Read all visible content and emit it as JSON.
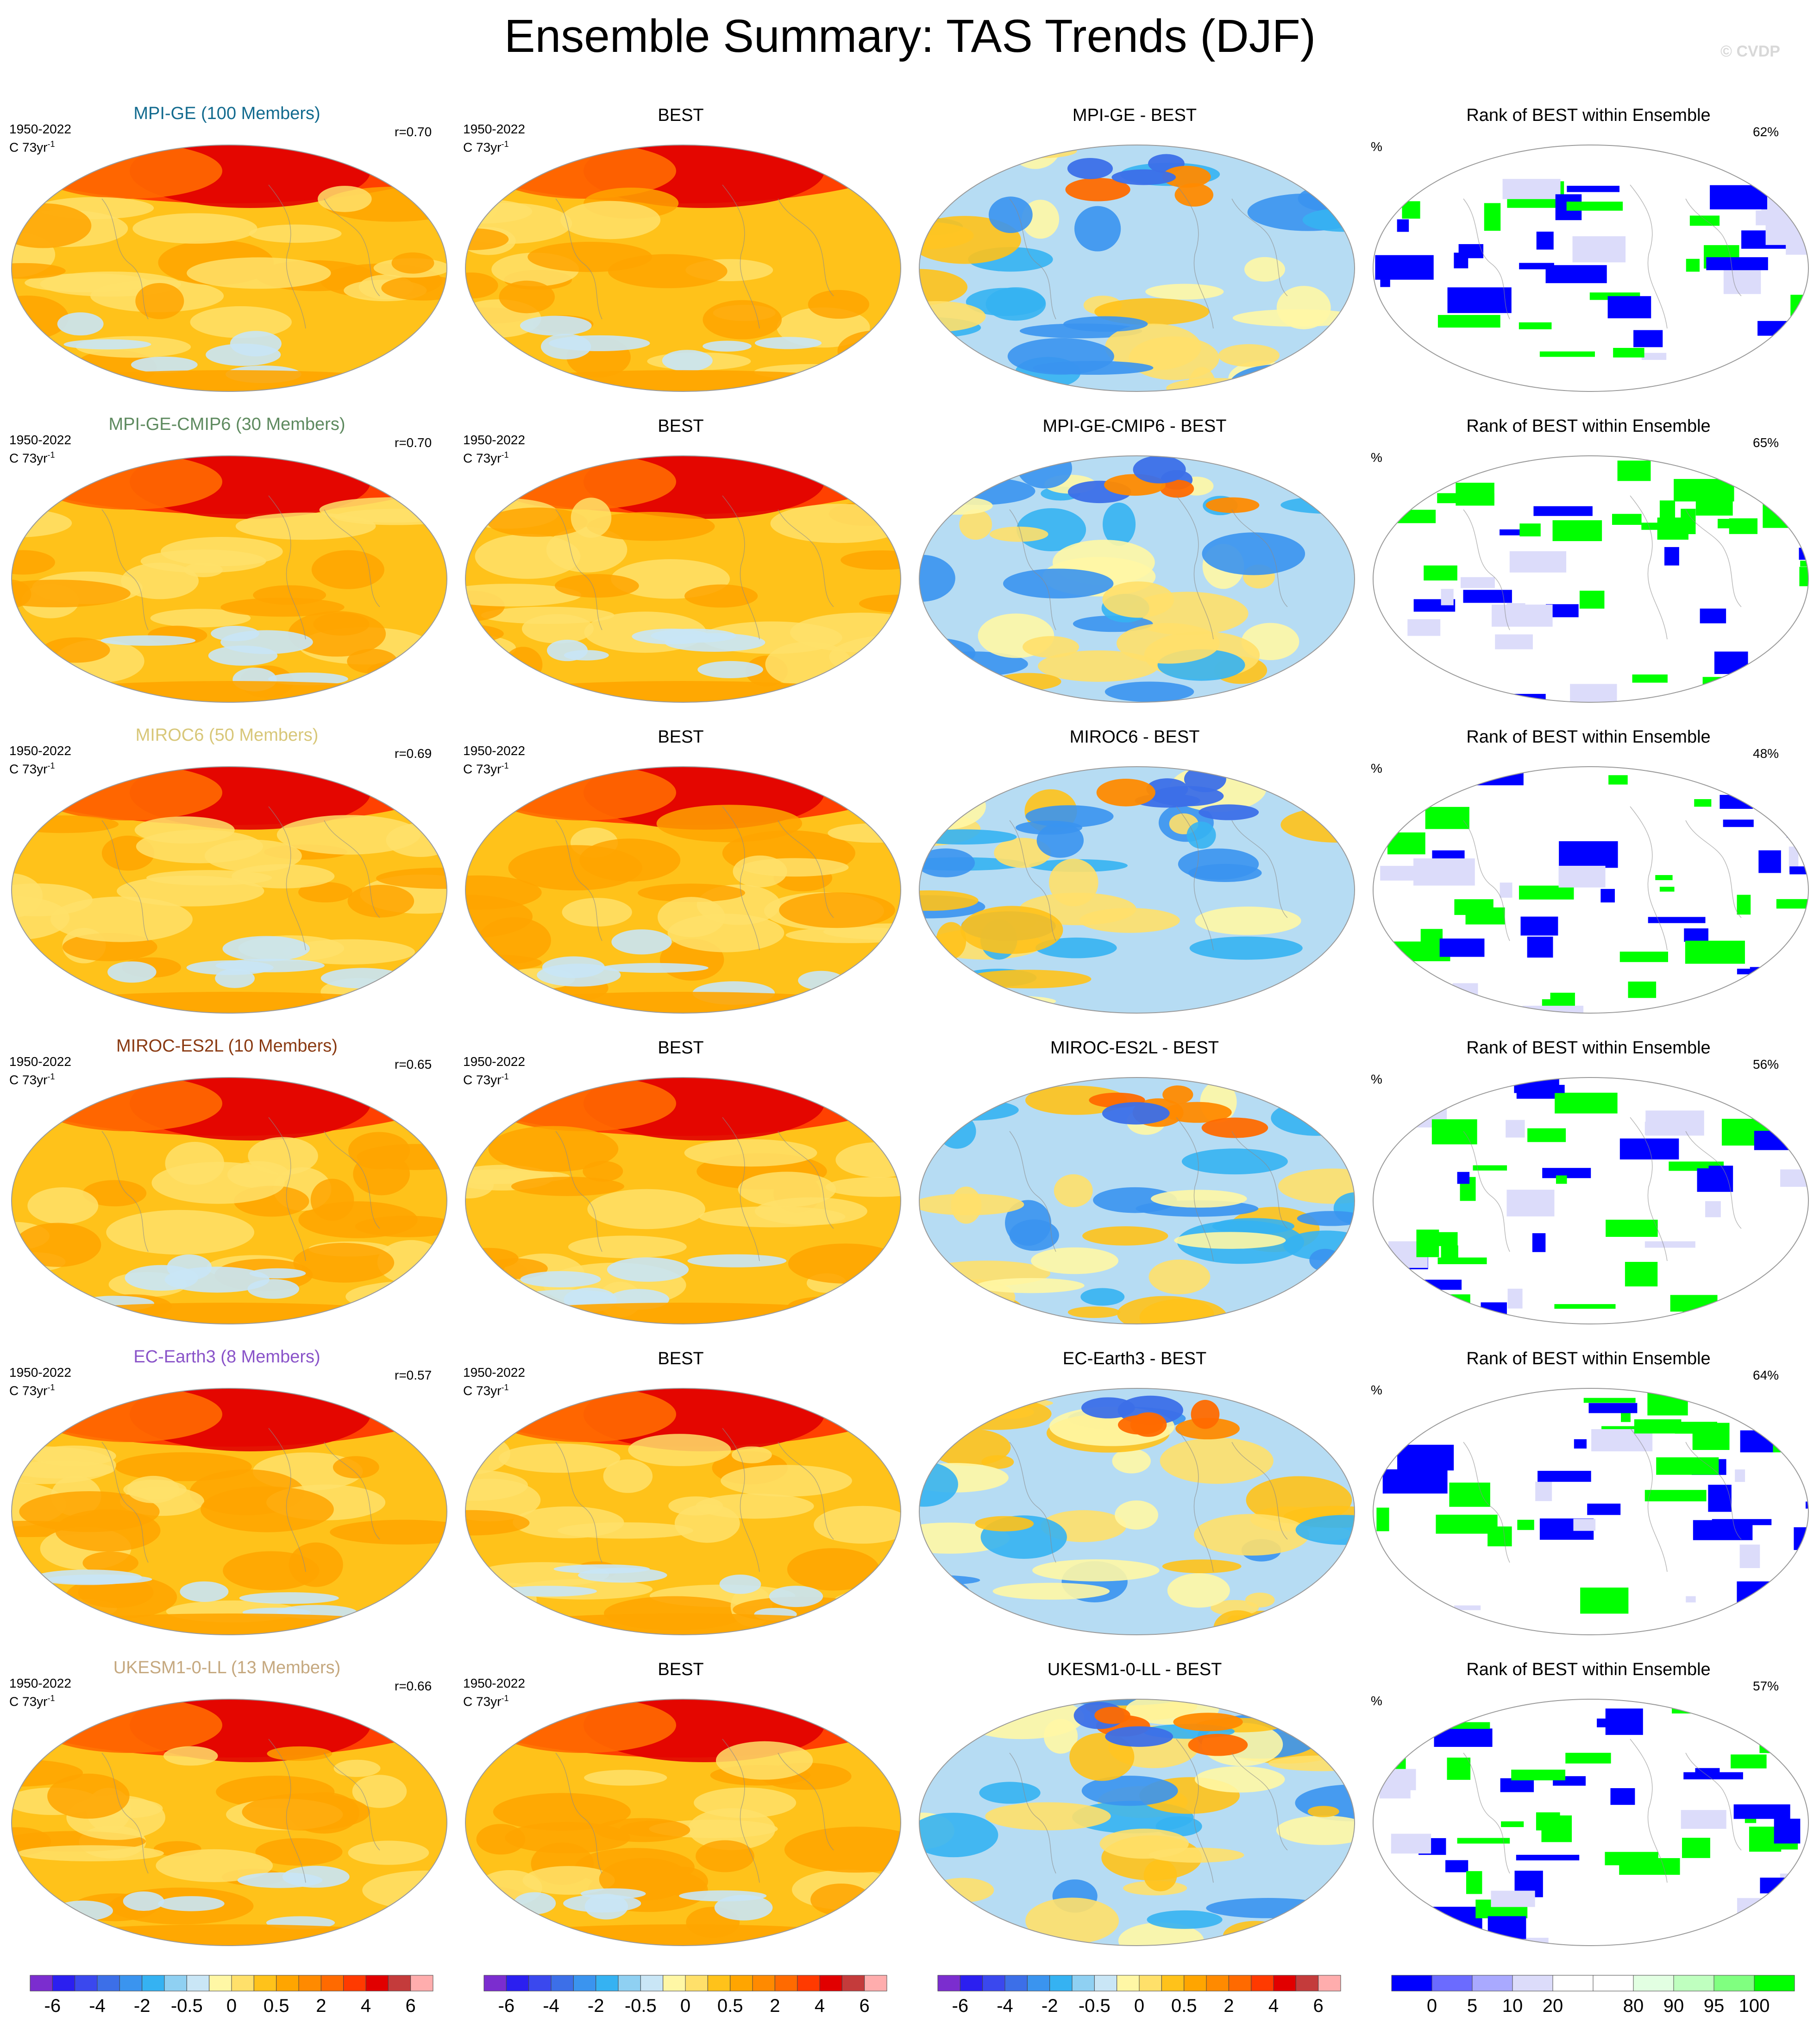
{
  "page": {
    "title": "Ensemble Summary: TAS Trends (DJF)",
    "watermark": "© CVDP"
  },
  "colors": {
    "trend_scale": [
      "#7b2dcf",
      "#2b1ff0",
      "#3a48ee",
      "#3c6fe8",
      "#3a94ef",
      "#35b2f2",
      "#8fd0f2",
      "#c9e6f6",
      "#fff7a5",
      "#ffe06a",
      "#ffc21a",
      "#ffa500",
      "#ff8a00",
      "#ff6a00",
      "#ff3a00",
      "#e10000",
      "#c43b3b",
      "#ffadad"
    ],
    "rank_scale": [
      "#0000ff",
      "#6b6bff",
      "#a9a9ff",
      "#dcdcfa",
      "#ffffff",
      "#ffffff",
      "#e2ffe2",
      "#bfffbf",
      "#80ff80",
      "#00ff00"
    ],
    "ensemble_title_colors": [
      "#136b8f",
      "#5e8a5f",
      "#d8c779",
      "#8a3a12",
      "#8a54c9",
      "#c5a87f"
    ]
  },
  "meta": {
    "period": "1950-2022",
    "units_base": "C 73yr",
    "units_sup": "-1",
    "percent_label": "%"
  },
  "rows": [
    {
      "ensemble": "MPI-GE (100 Members)",
      "r": "r=0.70",
      "obs_title": "BEST",
      "diff_title": "MPI-GE - BEST",
      "rank_title": "Rank of BEST within Ensemble",
      "rank_pct": "62%"
    },
    {
      "ensemble": "MPI-GE-CMIP6 (30 Members)",
      "r": "r=0.70",
      "obs_title": "BEST",
      "diff_title": "MPI-GE-CMIP6 - BEST",
      "rank_title": "Rank of BEST within Ensemble",
      "rank_pct": "65%"
    },
    {
      "ensemble": "MIROC6 (50 Members)",
      "r": "r=0.69",
      "obs_title": "BEST",
      "diff_title": "MIROC6 - BEST",
      "rank_title": "Rank of BEST within Ensemble",
      "rank_pct": "48%"
    },
    {
      "ensemble": "MIROC-ES2L (10 Members)",
      "r": "r=0.65",
      "obs_title": "BEST",
      "diff_title": "MIROC-ES2L - BEST",
      "rank_title": "Rank of BEST within Ensemble",
      "rank_pct": "56%"
    },
    {
      "ensemble": "EC-Earth3 (8 Members)",
      "r": "r=0.57",
      "obs_title": "BEST",
      "diff_title": "EC-Earth3 - BEST",
      "rank_title": "Rank of BEST within Ensemble",
      "rank_pct": "64%"
    },
    {
      "ensemble": "UKESM1-0-LL (13 Members)",
      "r": "r=0.66",
      "obs_title": "BEST",
      "diff_title": "UKESM1-0-LL - BEST",
      "rank_title": "Rank of BEST within Ensemble",
      "rank_pct": "57%"
    }
  ],
  "colorbars": {
    "trend_labels": [
      "-6",
      "-4",
      "-2",
      "-0.5",
      "0",
      "0.5",
      "2",
      "4",
      "6"
    ],
    "rank_labels": [
      "0",
      "5",
      "10",
      "20",
      "80",
      "90",
      "95",
      "100"
    ]
  }
}
